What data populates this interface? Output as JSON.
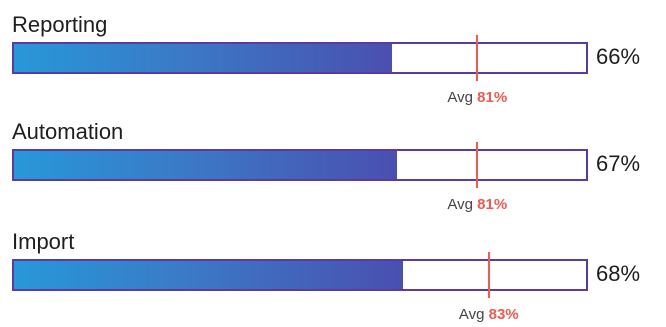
{
  "chart_data": {
    "type": "bar",
    "orientation": "horizontal",
    "ylim": [
      0,
      100
    ],
    "avg_prefix": "Avg",
    "items": [
      {
        "label": "Reporting",
        "value": 66,
        "value_label": "66%",
        "avg": 81,
        "avg_label": "81%"
      },
      {
        "label": "Automation",
        "value": 67,
        "value_label": "67%",
        "avg": 81,
        "avg_label": "81%"
      },
      {
        "label": "Import",
        "value": 68,
        "value_label": "68%",
        "avg": 83,
        "avg_label": "83%"
      }
    ],
    "colors": {
      "fill_start": "#2798d9",
      "fill_end": "#4a4fb0",
      "border": "#5b3aa4",
      "avg_marker": "#f05a4f"
    }
  }
}
